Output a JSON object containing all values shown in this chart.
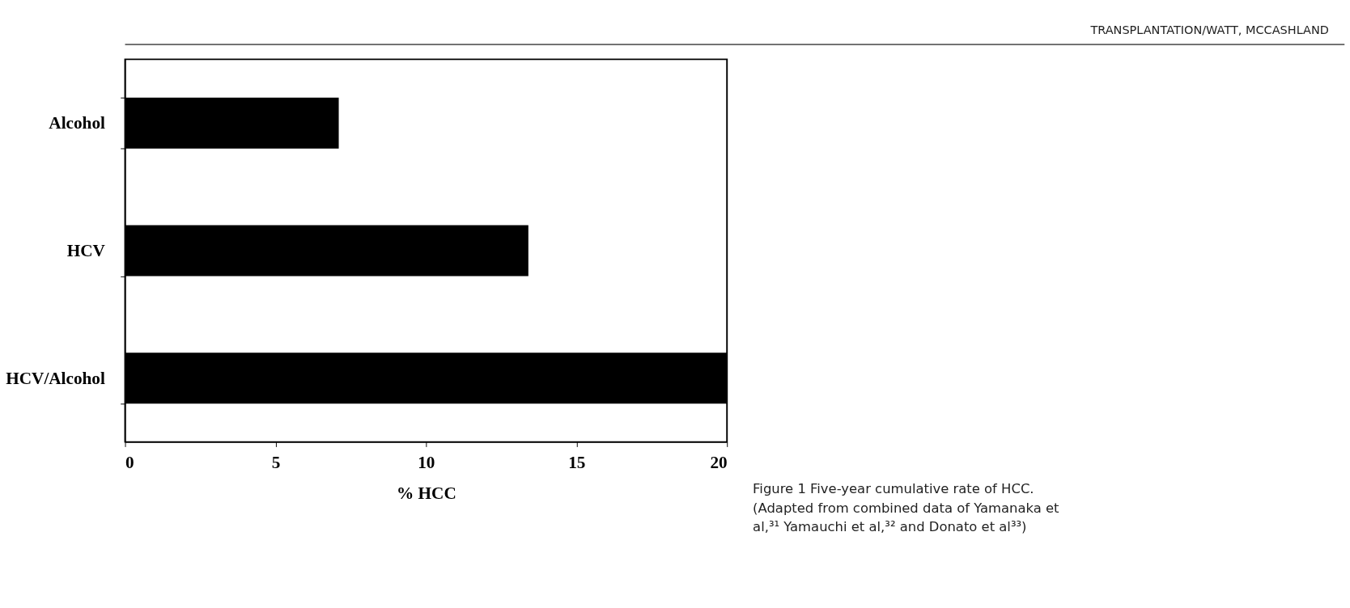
{
  "chart_data": {
    "type": "bar",
    "orientation": "horizontal",
    "xlabel": "% HCC",
    "categories": [
      "Alcohol",
      "HCV",
      "HCV/Alcohol"
    ],
    "values": [
      7.1,
      13.4,
      20
    ],
    "color": "#000000",
    "xlim": [
      0,
      20
    ],
    "xticks": [
      0,
      5,
      10,
      15,
      20
    ],
    "grid": false,
    "annotations": [
      "TRANSPLANTATION/WATT, MCCASHLAND",
      "Figure 1   Five-year cumulative rate of HCC. (Adapted from combined data of Yamanaka et al,³¹ Yamauchi et al,³² and Donato et al³³)"
    ]
  }
}
